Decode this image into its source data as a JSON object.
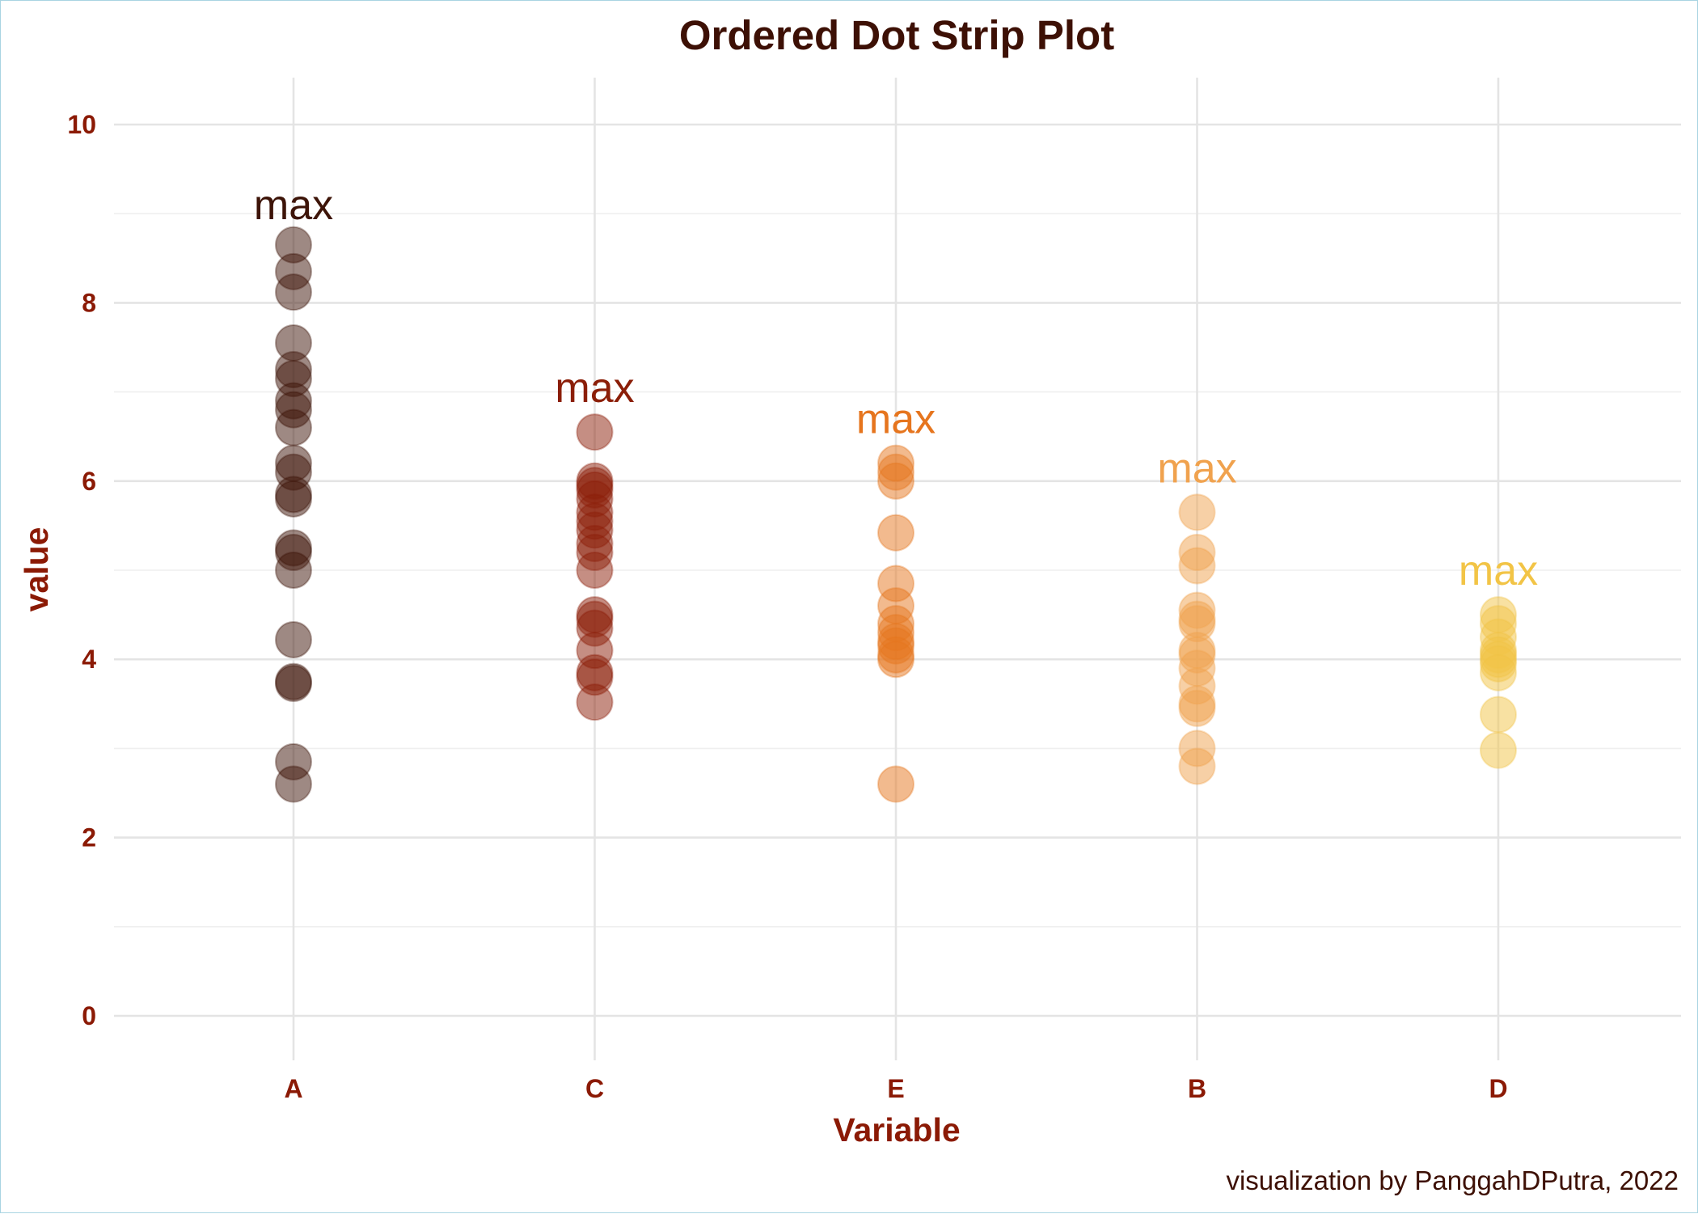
{
  "chart_data": {
    "type": "scatter",
    "title": "Ordered Dot Strip Plot",
    "xlabel": "Variable",
    "ylabel": "value",
    "caption": "visualization by PanggahDPutra, 2022",
    "categories": [
      "A",
      "C",
      "E",
      "B",
      "D"
    ],
    "ylim": [
      -0.3,
      10.5
    ],
    "yticks": [
      0,
      2,
      4,
      6,
      8,
      10
    ],
    "grid": true,
    "legend": "none",
    "annotation_text": "max",
    "series": [
      {
        "category": "A",
        "color": "#3d1408",
        "max_label_y": 9.1,
        "values": [
          8.65,
          8.35,
          8.12,
          7.55,
          7.25,
          7.15,
          6.9,
          6.8,
          6.6,
          6.2,
          6.1,
          5.85,
          5.8,
          5.25,
          5.2,
          5.0,
          4.22,
          3.75,
          3.73,
          2.85,
          2.6
        ]
      },
      {
        "category": "C",
        "color": "#8b1e08",
        "max_label_y": 7.05,
        "values": [
          6.55,
          6.0,
          5.95,
          5.9,
          5.8,
          5.65,
          5.55,
          5.45,
          5.3,
          5.2,
          5.0,
          4.5,
          4.45,
          4.35,
          4.1,
          3.85,
          3.8,
          3.52
        ]
      },
      {
        "category": "E",
        "color": "#e6751e",
        "max_label_y": 6.7,
        "values": [
          6.2,
          6.1,
          6.0,
          5.42,
          4.85,
          4.6,
          4.4,
          4.3,
          4.2,
          4.15,
          4.05,
          4.0,
          2.6
        ]
      },
      {
        "category": "B",
        "color": "#f0a24e",
        "max_label_y": 6.15,
        "values": [
          5.65,
          5.2,
          5.05,
          4.55,
          4.45,
          4.4,
          4.1,
          4.05,
          3.9,
          3.7,
          3.5,
          3.45,
          3.0,
          2.8
        ]
      },
      {
        "category": "D",
        "color": "#f2c446",
        "max_label_y": 5.0,
        "values": [
          4.5,
          4.4,
          4.25,
          4.1,
          4.05,
          4.0,
          3.95,
          3.85,
          3.38,
          2.98
        ]
      }
    ]
  }
}
